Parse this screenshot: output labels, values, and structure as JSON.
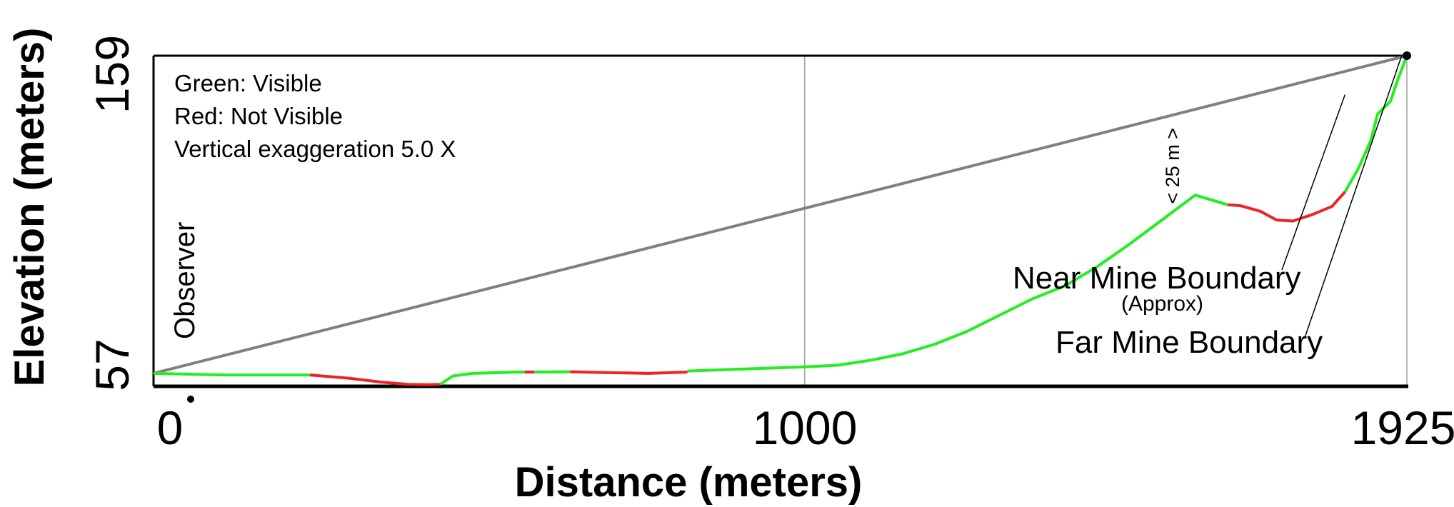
{
  "chart_data": {
    "type": "line",
    "title": "",
    "xlabel": "Distance (meters)",
    "ylabel": "Elevation (meters)",
    "xlim": [
      0,
      1925
    ],
    "ylim": [
      57,
      159
    ],
    "x_ticks": [
      "0",
      "1000",
      "1925"
    ],
    "y_ticks": [
      "57",
      "159"
    ],
    "grid": {
      "vertical_lines_at": [
        1000,
        1925
      ]
    },
    "legend": {
      "lines": [
        "Green: Visible",
        "Red: Not Visible",
        "Vertical exaggeration 5.0 X"
      ],
      "placement": "top-left"
    },
    "colors": {
      "visible": "#22ee22",
      "not_visible": "#ee2222",
      "sightline": "#808080",
      "axis": "#000000"
    },
    "observer": {
      "label": "Observer",
      "x": 0,
      "y": 61
    },
    "target": {
      "x": 1925,
      "y": 159
    },
    "sight_line": {
      "x": [
        0,
        1925
      ],
      "y": [
        61,
        159
      ]
    },
    "series": [
      {
        "visibility": "visible",
        "x": [
          0,
          110,
          240
        ],
        "y": [
          61,
          60.5,
          60.5
        ]
      },
      {
        "visibility": "not_visible",
        "x": [
          240,
          300,
          350,
          390,
          420,
          440
        ],
        "y": [
          60.5,
          59.5,
          58.3,
          57.6,
          57.5,
          57.6
        ]
      },
      {
        "visibility": "visible",
        "x": [
          440,
          460,
          490,
          560,
          570
        ],
        "y": [
          57.6,
          60.2,
          61.0,
          61.4,
          61.4
        ]
      },
      {
        "visibility": "not_visible",
        "x": [
          570,
          585
        ],
        "y": [
          61.4,
          61.4
        ]
      },
      {
        "visibility": "visible",
        "x": [
          585,
          640
        ],
        "y": [
          61.4,
          61.5
        ]
      },
      {
        "visibility": "not_visible",
        "x": [
          640,
          700,
          760,
          820
        ],
        "y": [
          61.5,
          61.2,
          61.0,
          61.4
        ]
      },
      {
        "visibility": "visible",
        "x": [
          820,
          900,
          1000,
          1050,
          1100,
          1150,
          1200,
          1250,
          1300,
          1350,
          1400,
          1450,
          1500,
          1550,
          1600,
          1650
        ],
        "y": [
          61.7,
          62.3,
          63.0,
          63.5,
          65.0,
          67.0,
          70.0,
          74.0,
          79.0,
          84.0,
          88.0,
          94.0,
          101.0,
          108.5,
          116.0,
          113.0
        ]
      },
      {
        "visibility": "not_visible",
        "x": [
          1650,
          1670,
          1700,
          1725,
          1750,
          1780,
          1810,
          1830
        ],
        "y": [
          113.0,
          112.7,
          111.0,
          108.3,
          108.0,
          110.0,
          112.5,
          117.0
        ]
      },
      {
        "visibility": "visible",
        "x": [
          1830,
          1850,
          1870,
          1880,
          1900,
          1910,
          1925
        ],
        "y": [
          117.0,
          124.0,
          133.0,
          141.0,
          145.0,
          151.0,
          159.0
        ]
      }
    ],
    "annotations": [
      {
        "text": "< 25 m >",
        "x": 1565,
        "y_from": 113.5,
        "y_to": 136.5,
        "orientation": "vertical"
      },
      {
        "text": "Near Mine Boundary",
        "sub": "(Approx)",
        "points_to": {
          "x": 1830,
          "y": 147
        }
      },
      {
        "text": "Far Mine Boundary",
        "points_to": {
          "x": 1917,
          "y": 159
        }
      }
    ]
  }
}
